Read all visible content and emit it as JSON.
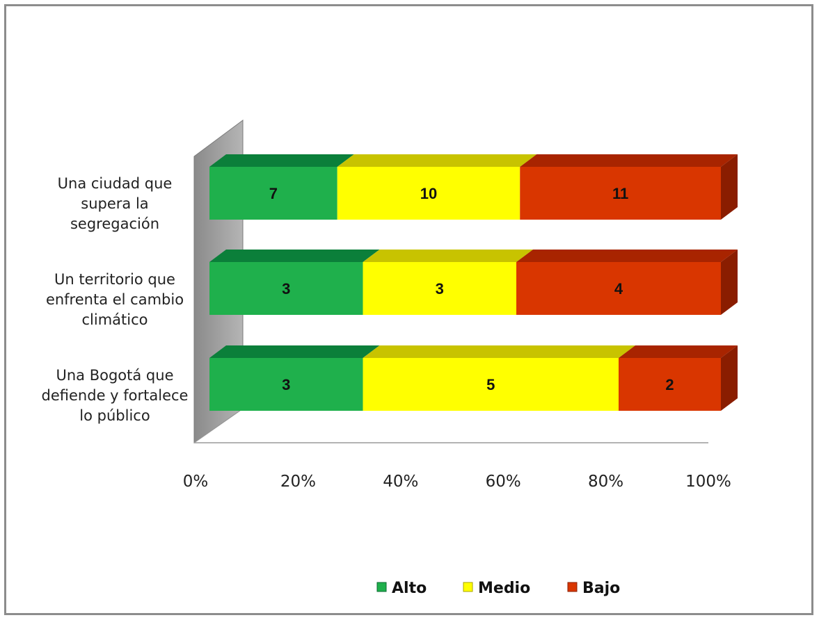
{
  "chart_data": {
    "type": "bar",
    "orientation": "horizontal",
    "stacked": "percent",
    "three_d": true,
    "categories": [
      [
        "Una ciudad que",
        "supera la",
        "segregación"
      ],
      [
        "Un territorio que",
        "enfrenta el cambio",
        "climático"
      ],
      [
        "Una Bogotá que",
        "defiende y fortalece",
        "lo público"
      ]
    ],
    "series": [
      {
        "name": "Alto",
        "values": [
          7,
          3,
          3
        ],
        "color": "#1fb04c",
        "top_color": "#0b7f3a",
        "side_color": "#0a6a30"
      },
      {
        "name": "Medio",
        "values": [
          10,
          3,
          5
        ],
        "color": "#ffff00",
        "top_color": "#c8c300",
        "side_color": "#a8a400"
      },
      {
        "name": "Bajo",
        "values": [
          11,
          4,
          2
        ],
        "color": "#d93600",
        "top_color": "#a82400",
        "side_color": "#8a1d00"
      }
    ],
    "x_ticks": [
      "0%",
      "20%",
      "40%",
      "60%",
      "80%",
      "100%"
    ],
    "xlim": [
      0,
      100
    ],
    "legend_position": "bottom",
    "grid": false
  }
}
